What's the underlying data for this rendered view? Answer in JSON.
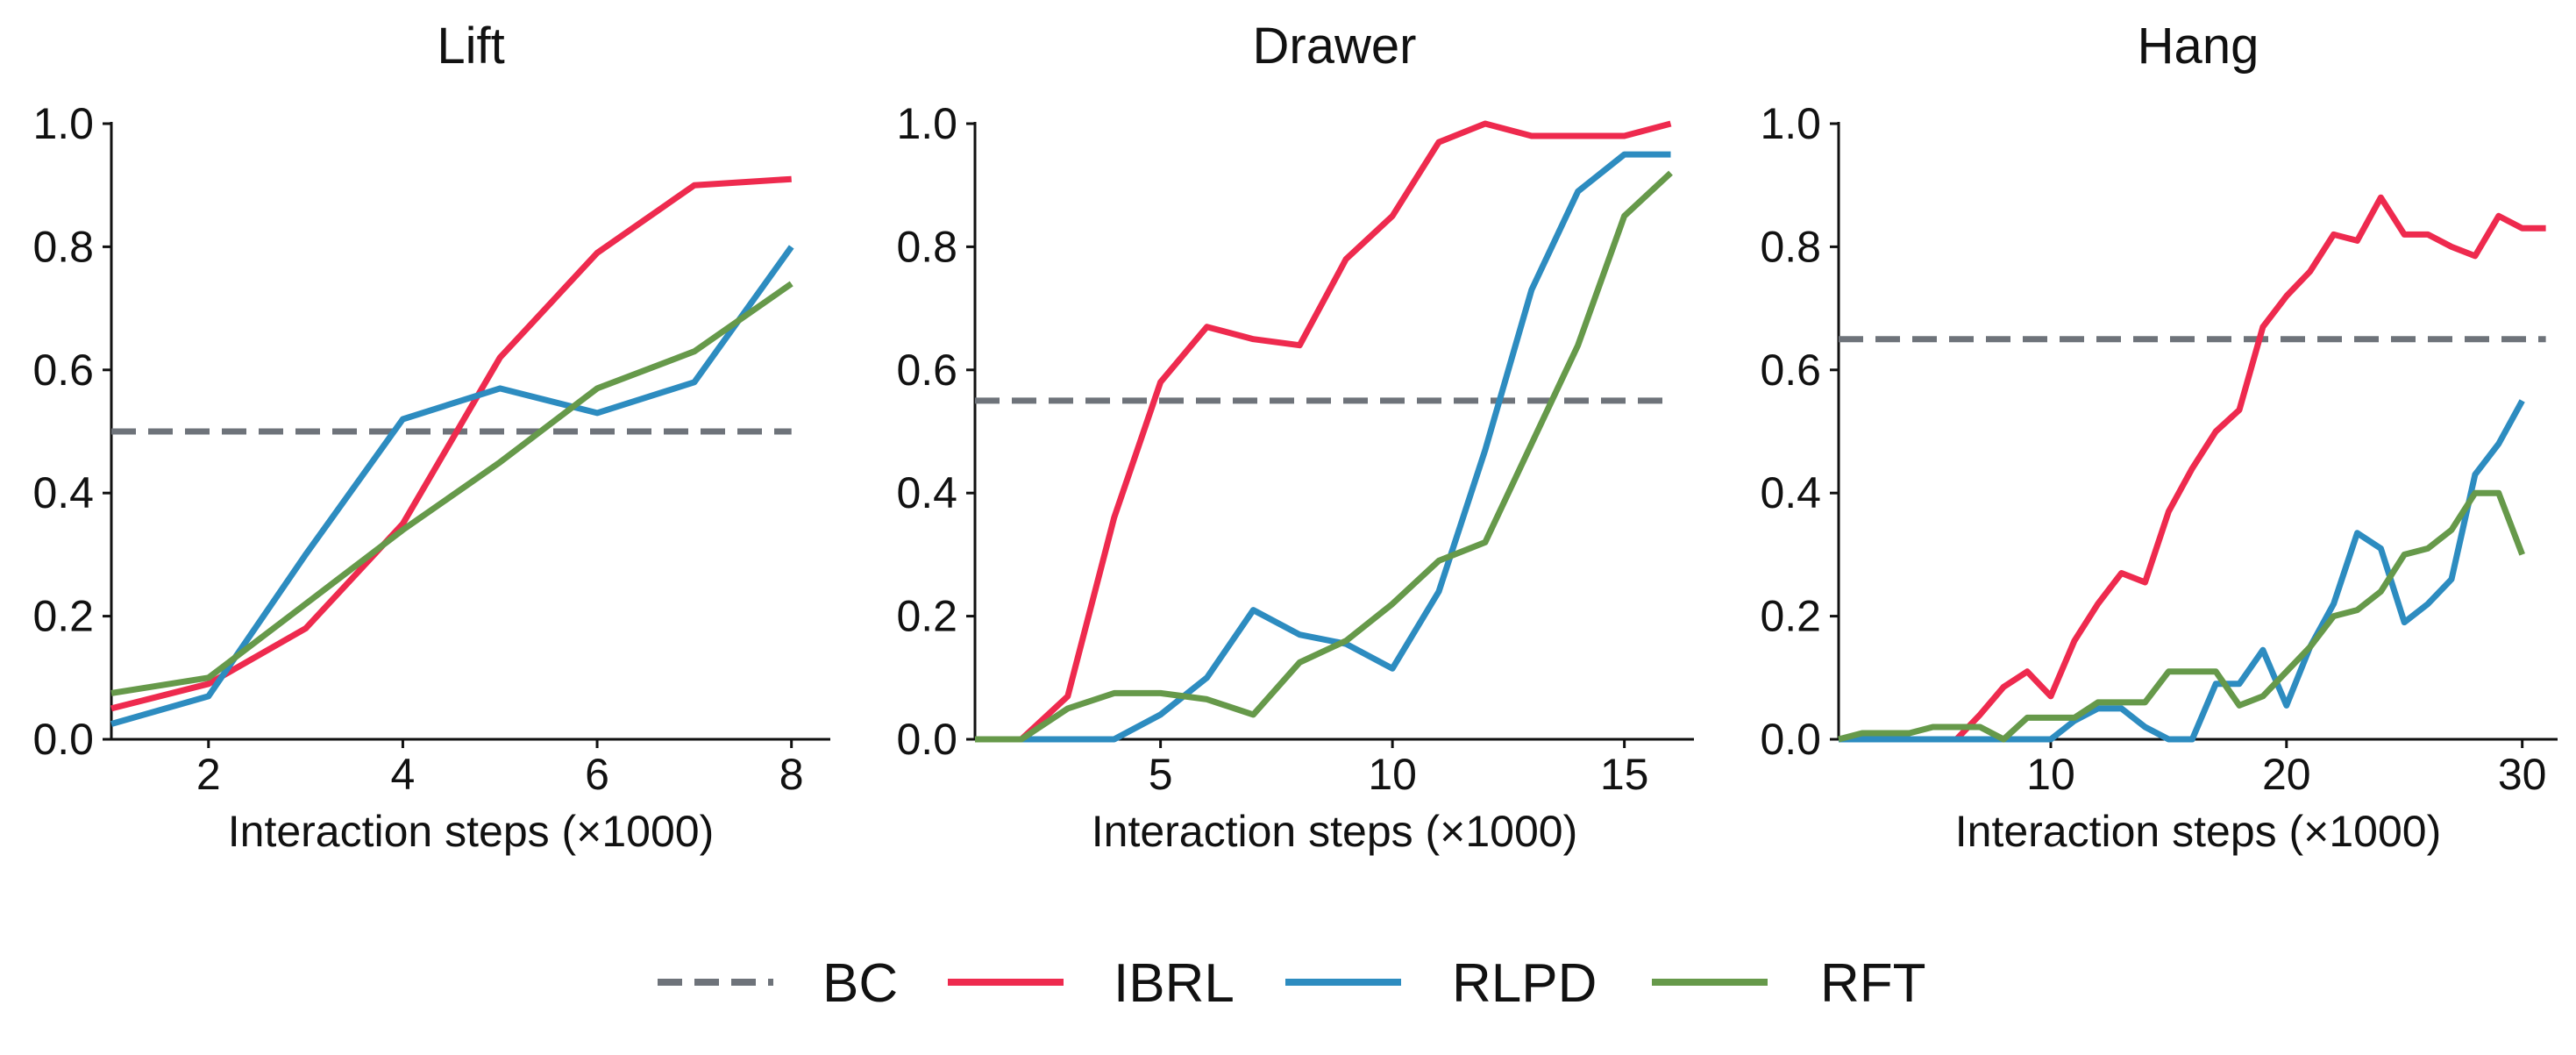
{
  "colors": {
    "BC": "#6e737a",
    "IBRL": "#ee2a4e",
    "RLPD": "#2d8cc0",
    "RFT": "#66994a"
  },
  "legend": [
    {
      "name": "BC",
      "style": "dashed"
    },
    {
      "name": "IBRL",
      "style": "solid"
    },
    {
      "name": "RLPD",
      "style": "solid"
    },
    {
      "name": "RFT",
      "style": "solid"
    }
  ],
  "chart_data": [
    {
      "type": "line",
      "title": "Lift",
      "xlabel": "Interaction steps (×1000)",
      "ylabel": "",
      "xlim": [
        1,
        8.4
      ],
      "ylim": [
        0,
        1.0
      ],
      "xticks": [
        2,
        4,
        6,
        8
      ],
      "yticks": [
        "0.0",
        "0.2",
        "0.4",
        "0.6",
        "0.8",
        "1.0"
      ],
      "series": [
        {
          "name": "BC",
          "x": [
            1,
            8
          ],
          "y": [
            0.5,
            0.5
          ]
        },
        {
          "name": "IBRL",
          "x": [
            1,
            2,
            3,
            4,
            5,
            6,
            7,
            8
          ],
          "y": [
            0.05,
            0.09,
            0.18,
            0.35,
            0.62,
            0.79,
            0.9,
            0.91
          ]
        },
        {
          "name": "RLPD",
          "x": [
            1,
            2,
            3,
            4,
            5,
            6,
            7,
            8
          ],
          "y": [
            0.025,
            0.07,
            0.3,
            0.52,
            0.57,
            0.53,
            0.58,
            0.8
          ]
        },
        {
          "name": "RFT",
          "x": [
            1,
            2,
            3,
            4,
            5,
            6,
            7,
            8
          ],
          "y": [
            0.075,
            0.1,
            0.22,
            0.34,
            0.45,
            0.57,
            0.63,
            0.74
          ]
        }
      ]
    },
    {
      "type": "line",
      "title": "Drawer",
      "xlabel": "Interaction steps (×1000)",
      "ylabel": "",
      "xlim": [
        1,
        16.5
      ],
      "ylim": [
        0,
        1.0
      ],
      "xticks": [
        5,
        10,
        15
      ],
      "yticks": [
        "0.0",
        "0.2",
        "0.4",
        "0.6",
        "0.8",
        "1.0"
      ],
      "series": [
        {
          "name": "BC",
          "x": [
            1,
            16
          ],
          "y": [
            0.55,
            0.55
          ]
        },
        {
          "name": "IBRL",
          "x": [
            1,
            2,
            3,
            4,
            5,
            6,
            7,
            8,
            9,
            10,
            11,
            12,
            13,
            14,
            15,
            16
          ],
          "y": [
            0.0,
            0.0,
            0.07,
            0.36,
            0.58,
            0.67,
            0.65,
            0.64,
            0.78,
            0.85,
            0.97,
            1.0,
            0.98,
            0.98,
            0.98,
            1.0
          ]
        },
        {
          "name": "RLPD",
          "x": [
            1,
            2,
            3,
            4,
            5,
            6,
            7,
            8,
            9,
            10,
            11,
            12,
            13,
            14,
            15,
            16
          ],
          "y": [
            0.0,
            0.0,
            0.0,
            0.0,
            0.04,
            0.1,
            0.21,
            0.17,
            0.155,
            0.115,
            0.24,
            0.47,
            0.73,
            0.89,
            0.95,
            0.95
          ]
        },
        {
          "name": "RFT",
          "x": [
            1,
            2,
            3,
            4,
            5,
            6,
            7,
            8,
            9,
            10,
            11,
            12,
            13,
            14,
            15,
            16
          ],
          "y": [
            0.0,
            0.0,
            0.05,
            0.075,
            0.075,
            0.065,
            0.04,
            0.125,
            0.16,
            0.22,
            0.29,
            0.32,
            0.48,
            0.64,
            0.85,
            0.92
          ]
        }
      ]
    },
    {
      "type": "line",
      "title": "Hang",
      "xlabel": "Interaction steps (×1000)",
      "ylabel": "",
      "xlim": [
        1,
        31.5
      ],
      "ylim": [
        0,
        1.0
      ],
      "xticks": [
        10,
        20,
        30
      ],
      "yticks": [
        "0.0",
        "0.2",
        "0.4",
        "0.6",
        "0.8",
        "1.0"
      ],
      "series": [
        {
          "name": "BC",
          "x": [
            1,
            31
          ],
          "y": [
            0.65,
            0.65
          ]
        },
        {
          "name": "IBRL",
          "x": [
            1,
            2,
            3,
            4,
            5,
            6,
            7,
            8,
            9,
            10,
            11,
            12,
            13,
            14,
            15,
            16,
            17,
            18,
            19,
            20,
            21,
            22,
            23,
            24,
            25,
            26,
            27,
            28,
            29,
            30,
            31
          ],
          "y": [
            0.0,
            0.0,
            0.0,
            0.0,
            0.0,
            0.0,
            0.04,
            0.085,
            0.11,
            0.07,
            0.16,
            0.22,
            0.27,
            0.255,
            0.37,
            0.44,
            0.5,
            0.535,
            0.67,
            0.72,
            0.76,
            0.82,
            0.81,
            0.88,
            0.82,
            0.82,
            0.8,
            0.785,
            0.85,
            0.83,
            0.83
          ]
        },
        {
          "name": "RLPD",
          "x": [
            1,
            2,
            3,
            4,
            5,
            6,
            7,
            8,
            9,
            10,
            11,
            12,
            13,
            14,
            15,
            16,
            17,
            18,
            19,
            20,
            21,
            22,
            23,
            24,
            25,
            26,
            27,
            28,
            29,
            30
          ],
          "y": [
            0.0,
            0.0,
            0.0,
            0.0,
            0.0,
            0.0,
            0.0,
            0.0,
            0.0,
            0.0,
            0.03,
            0.05,
            0.05,
            0.02,
            0.0,
            0.0,
            0.09,
            0.09,
            0.145,
            0.055,
            0.15,
            0.22,
            0.335,
            0.31,
            0.19,
            0.22,
            0.26,
            0.43,
            0.48,
            0.55
          ]
        },
        {
          "name": "RFT",
          "x": [
            1,
            2,
            3,
            4,
            5,
            6,
            7,
            8,
            9,
            10,
            11,
            12,
            13,
            14,
            15,
            16,
            17,
            18,
            19,
            20,
            21,
            22,
            23,
            24,
            25,
            26,
            27,
            28,
            29,
            30
          ],
          "y": [
            0.0,
            0.01,
            0.01,
            0.01,
            0.02,
            0.02,
            0.02,
            0.0,
            0.035,
            0.035,
            0.035,
            0.06,
            0.06,
            0.06,
            0.11,
            0.11,
            0.11,
            0.055,
            0.07,
            0.11,
            0.15,
            0.2,
            0.21,
            0.24,
            0.3,
            0.31,
            0.34,
            0.4,
            0.4,
            0.3
          ]
        }
      ]
    }
  ]
}
